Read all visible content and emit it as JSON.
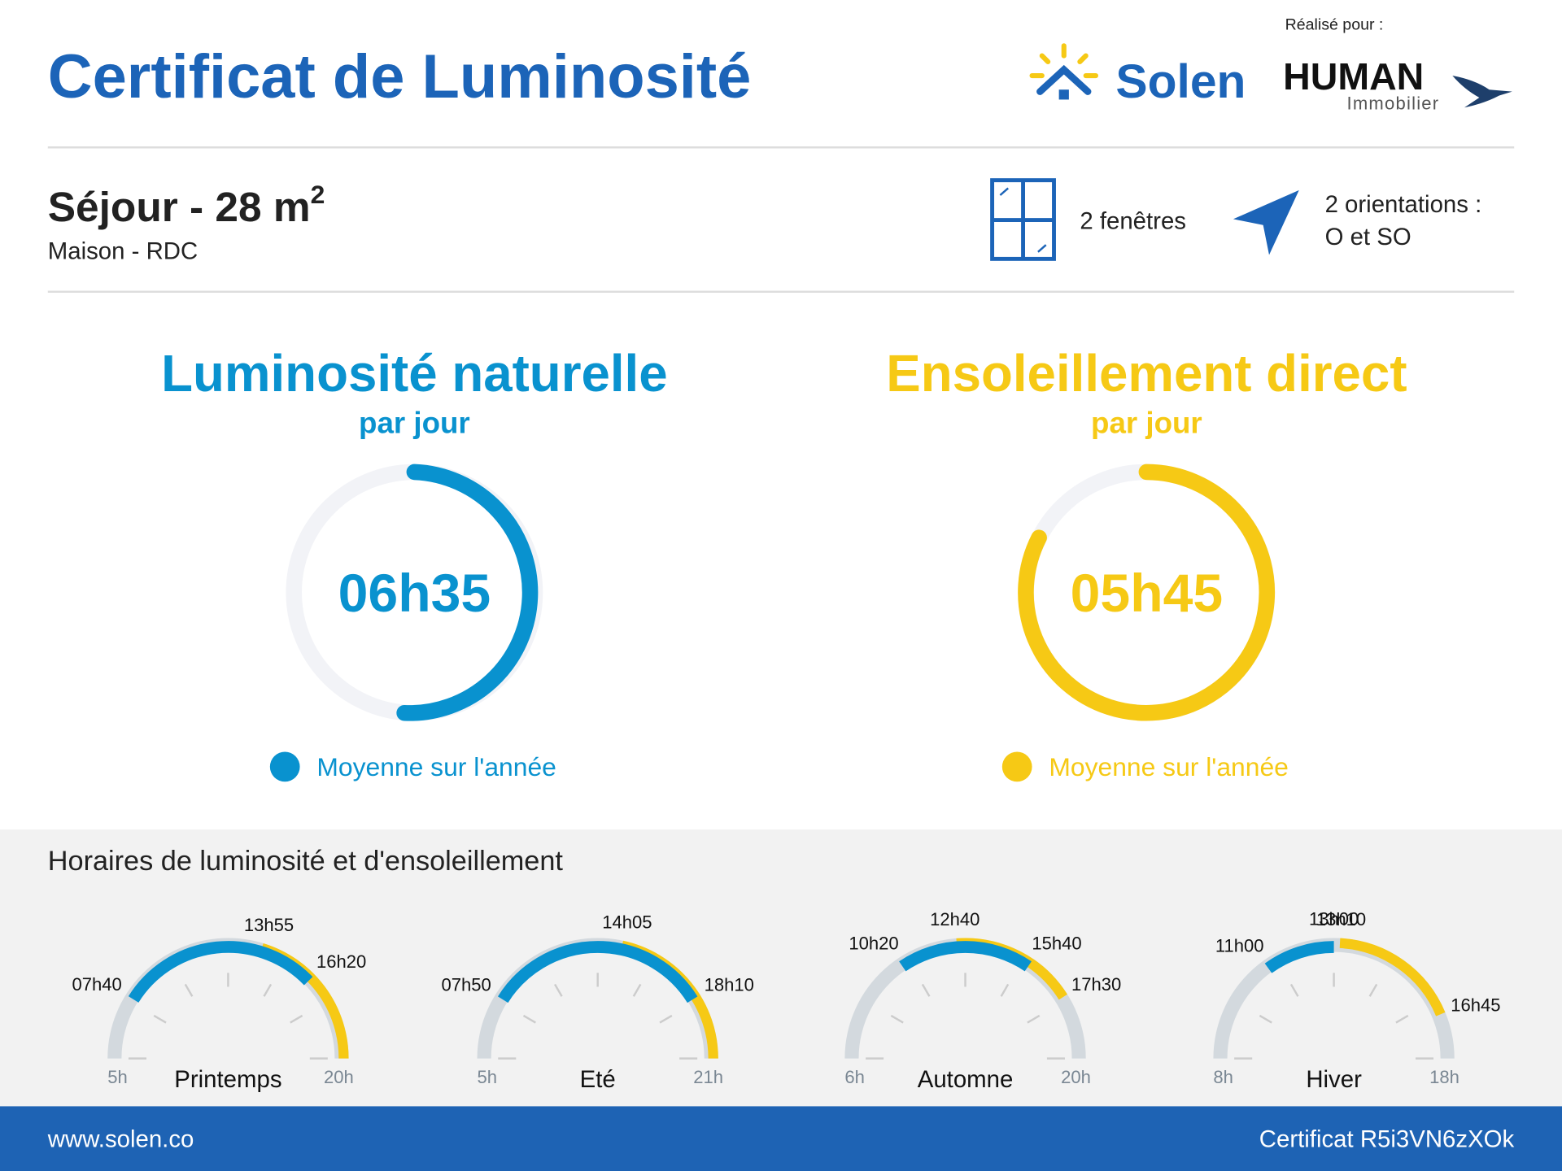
{
  "header": {
    "title": "Certificat de Luminosité",
    "brand": "Solen",
    "made_for": "Réalisé pour :",
    "client": "HUMAN",
    "client_sub": "Immobilier"
  },
  "room": {
    "title": "Séjour - 28 m",
    "title_sup": "2",
    "subtitle": "Maison - RDC",
    "windows": "2 fenêtres",
    "orientations_1": "2 orientations :",
    "orientations_2": "O et SO"
  },
  "luminosite": {
    "title": "Luminosité naturelle",
    "sub": "par jour",
    "value": "06h35",
    "legend": "Moyenne sur l'année"
  },
  "ensoleillement": {
    "title": "Ensoleillement direct",
    "sub": "par jour",
    "value": "05h45",
    "legend": "Moyenne sur l'année"
  },
  "horaires": {
    "title": "Horaires de luminosité et d'ensoleillement",
    "gauges": [
      {
        "name": "Printemps",
        "min": "5h",
        "max": "20h",
        "times": [
          "07h40",
          "13h55",
          "16h20"
        ]
      },
      {
        "name": "Eté",
        "min": "5h",
        "max": "21h",
        "times": [
          "07h50",
          "14h05",
          "18h10"
        ]
      },
      {
        "name": "Automne",
        "min": "6h",
        "max": "20h",
        "times": [
          "10h20",
          "12h40",
          "15h40",
          "17h30"
        ]
      },
      {
        "name": "Hiver",
        "min": "8h",
        "max": "18h",
        "times": [
          "11h00",
          "13h00",
          "13h10",
          "16h45"
        ]
      }
    ]
  },
  "footer": {
    "url": "www.solen.co",
    "certificate": "Certificat R5i3VN6zXOk"
  }
}
